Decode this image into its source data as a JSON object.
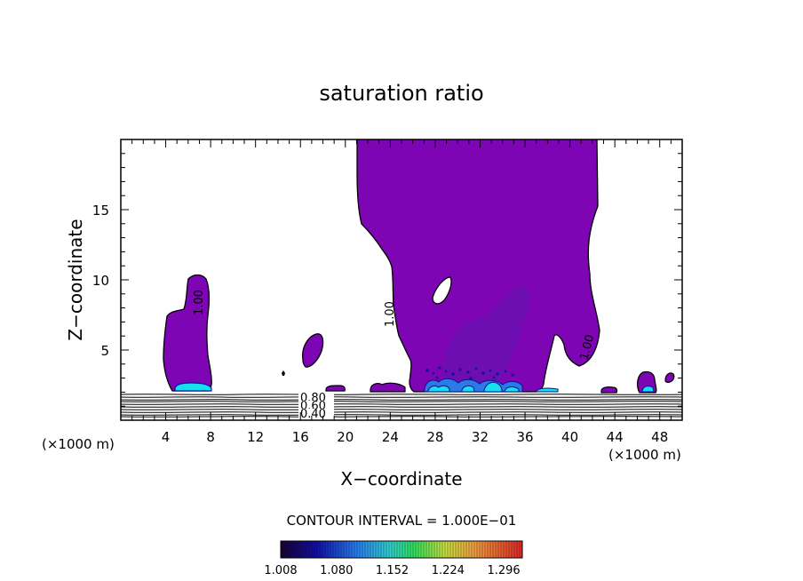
{
  "chart_data": {
    "type": "contour",
    "title": "saturation ratio",
    "xlabel": "X−coordinate",
    "ylabel": "Z−coordinate",
    "x_unit_left": "(×1000 m)",
    "x_unit_right": "(×1000 m)",
    "xlim": [
      0,
      50
    ],
    "ylim": [
      0,
      20
    ],
    "x_ticks": [
      4,
      8,
      12,
      16,
      20,
      24,
      28,
      32,
      36,
      40,
      44,
      48
    ],
    "y_ticks": [
      5,
      10,
      15
    ],
    "contour_interval_text": "CONTOUR INTERVAL = 1.000E−01",
    "contour_labels": [
      "0.80",
      "0.60",
      "0.40",
      "1.00",
      "1.00",
      "1.00"
    ],
    "colorbar": {
      "ticks": [
        "1.008",
        "1.080",
        "1.152",
        "1.224",
        "1.296"
      ],
      "range": [
        1.008,
        1.32
      ]
    },
    "colors": {
      "saturated_fill": "#7d05b4",
      "saturated_fill_deep": "#6a10b0",
      "cyan": "#16e0f0",
      "light_blue": "#2a7ae8",
      "line": "#000000"
    }
  }
}
